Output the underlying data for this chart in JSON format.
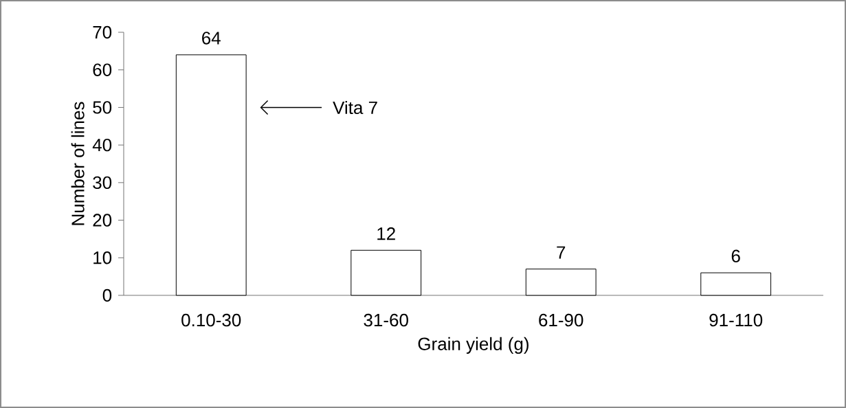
{
  "chart_data": {
    "type": "bar",
    "xlabel": "Grain yield (g)",
    "ylabel": "Number of lines",
    "categories": [
      "0.10-30",
      "31-60",
      "61-90",
      "91-110"
    ],
    "values": [
      64,
      12,
      7,
      6
    ],
    "color": "#ffffff",
    "data_labels": true,
    "ylim": [
      0,
      70
    ],
    "yticks": [
      0,
      10,
      20,
      30,
      40,
      50,
      60,
      70
    ],
    "grid": false,
    "annotations": [
      "Vita 7"
    ]
  }
}
